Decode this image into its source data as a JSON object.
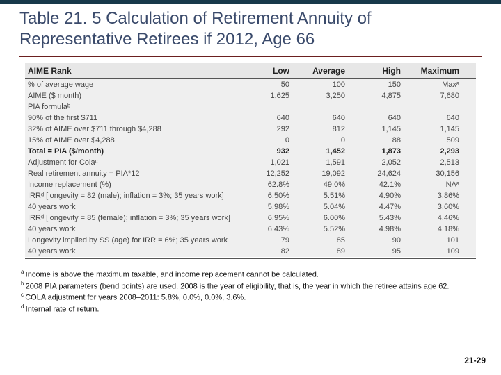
{
  "title": "Table 21. 5 Calculation of Retirement Annuity of Representative Retirees if 2012, Age 66",
  "colors": {
    "topbar": "#18394a",
    "title": "#3a4a6b",
    "rule": "#6b1f1f",
    "header_bg": "#e7e7e7",
    "body_bg": "#efefef"
  },
  "table": {
    "header": {
      "label": "AIME Rank",
      "cols": [
        "Low",
        "Average",
        "High",
        "Maximum"
      ]
    },
    "rows": [
      {
        "label": "% of average wage",
        "vals": [
          "50",
          "100",
          "150",
          "Maxᵃ"
        ]
      },
      {
        "label": "AIME ($ month)",
        "vals": [
          "1,625",
          "3,250",
          "4,875",
          "7,680"
        ]
      },
      {
        "label": "PIA formulaᵇ",
        "vals": [
          "",
          "",
          "",
          ""
        ]
      },
      {
        "label": "90% of the first $711",
        "vals": [
          "640",
          "640",
          "640",
          "640"
        ]
      },
      {
        "label": "32% of AIME over $711 through $4,288",
        "vals": [
          "292",
          "812",
          "1,145",
          "1,145"
        ]
      },
      {
        "label": "15% of AIME over $4,288",
        "vals": [
          "0",
          "0",
          "88",
          "509"
        ]
      },
      {
        "label": "Total = PIA ($/month)",
        "vals": [
          "932",
          "1,452",
          "1,873",
          "2,293"
        ],
        "bold": true
      },
      {
        "label": "Adjustment for Colaᶜ",
        "vals": [
          "1,021",
          "1,591",
          "2,052",
          "2,513"
        ]
      },
      {
        "label": "Real retirement annuity = PIA*12",
        "vals": [
          "12,252",
          "19,092",
          "24,624",
          "30,156"
        ]
      },
      {
        "label": "Income replacement (%)",
        "vals": [
          "62.8%",
          "49.0%",
          "42.1%",
          "NAᵃ"
        ]
      },
      {
        "label": "IRRᵈ [longevity = 82 (male); inflation = 3%; 35 years work]",
        "vals": [
          "6.50%",
          "5.51%",
          "4.90%",
          "3.86%"
        ]
      },
      {
        "label": "40 years work",
        "vals": [
          "5.98%",
          "5.04%",
          "4.47%",
          "3.60%"
        ]
      },
      {
        "label": "IRRᵈ [longevity = 85 (female); inflation = 3%; 35 years work]",
        "vals": [
          "6.95%",
          "6.00%",
          "5.43%",
          "4.46%"
        ]
      },
      {
        "label": "40 years work",
        "vals": [
          "6.43%",
          "5.52%",
          "4.98%",
          "4.18%"
        ]
      },
      {
        "label": "Longevity implied by SS (age) for IRR = 6%; 35 years work",
        "vals": [
          "79",
          "85",
          "90",
          "101"
        ]
      },
      {
        "label": "40 years work",
        "vals": [
          "82",
          "89",
          "95",
          "109"
        ]
      }
    ]
  },
  "footnotes": {
    "a": "Income is above the maximum taxable, and income replacement cannot be calculated.",
    "b": "2008 PIA parameters (bend points) are used. 2008 is the year of eligibility, that is, the year in which the retiree attains age 62.",
    "c": "COLA adjustment for years 2008–2011: 5.8%, 0.0%, 0.0%, 3.6%.",
    "d": "Internal rate of return."
  },
  "page": "21-29"
}
